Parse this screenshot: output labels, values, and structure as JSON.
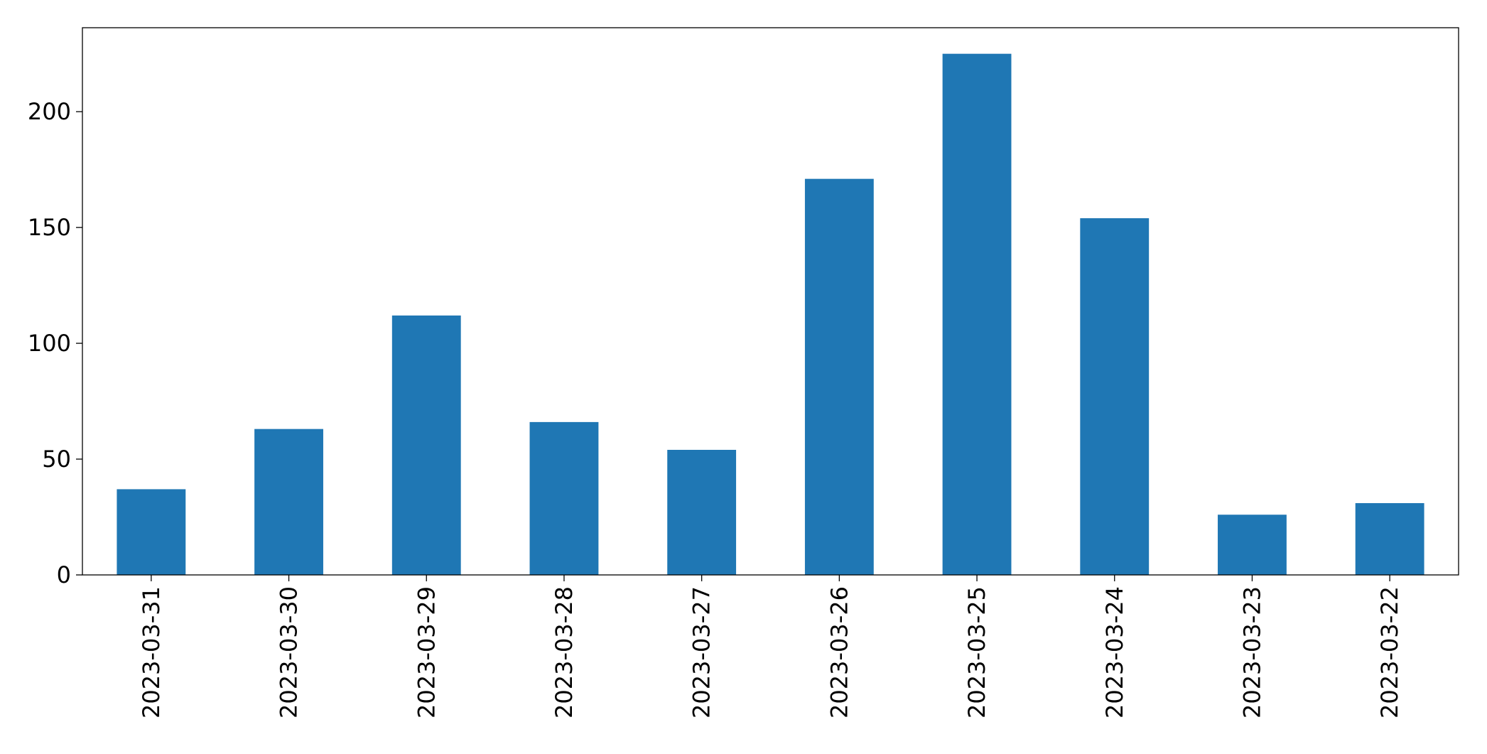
{
  "chart_data": {
    "type": "bar",
    "categories": [
      "2023-03-31",
      "2023-03-30",
      "2023-03-29",
      "2023-03-28",
      "2023-03-27",
      "2023-03-26",
      "2023-03-25",
      "2023-03-24",
      "2023-03-23",
      "2023-03-22"
    ],
    "values": [
      37,
      63,
      112,
      66,
      54,
      171,
      225,
      154,
      26,
      31
    ],
    "color": "#1f77b4",
    "ylim": [
      0,
      236.25
    ],
    "yticks": [
      0,
      50,
      100,
      150,
      200
    ]
  }
}
